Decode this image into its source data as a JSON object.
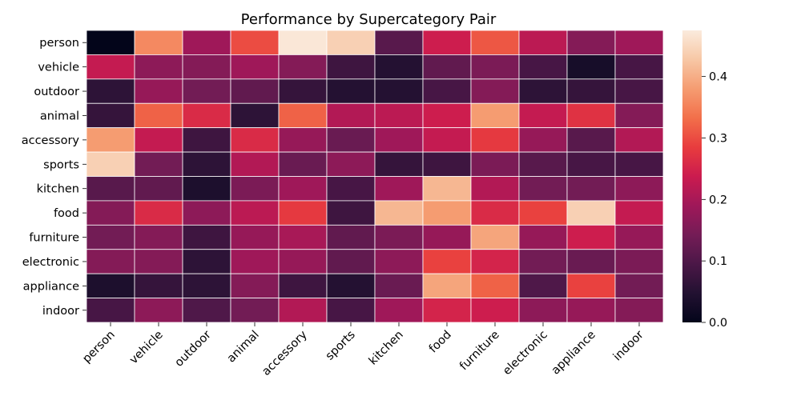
{
  "chart_data": {
    "type": "heatmap",
    "title": "Performance by Supercategory Pair",
    "xlabel": "",
    "ylabel": "",
    "x_categories": [
      "person",
      "vehicle",
      "outdoor",
      "animal",
      "accessory",
      "sports",
      "kitchen",
      "food",
      "furniture",
      "electronic",
      "appliance",
      "indoor"
    ],
    "y_categories": [
      "person",
      "vehicle",
      "outdoor",
      "animal",
      "accessory",
      "sports",
      "kitchen",
      "food",
      "furniture",
      "electronic",
      "appliance",
      "indoor"
    ],
    "values": [
      [
        0.0,
        0.36,
        0.19,
        0.3,
        0.47,
        0.44,
        0.11,
        0.24,
        0.31,
        0.22,
        0.16,
        0.19
      ],
      [
        0.23,
        0.17,
        0.16,
        0.19,
        0.16,
        0.08,
        0.05,
        0.12,
        0.15,
        0.09,
        0.03,
        0.09
      ],
      [
        0.06,
        0.18,
        0.14,
        0.12,
        0.07,
        0.05,
        0.05,
        0.09,
        0.16,
        0.06,
        0.07,
        0.09
      ],
      [
        0.07,
        0.32,
        0.26,
        0.06,
        0.32,
        0.21,
        0.22,
        0.24,
        0.38,
        0.23,
        0.27,
        0.16
      ],
      [
        0.38,
        0.23,
        0.08,
        0.26,
        0.18,
        0.13,
        0.19,
        0.23,
        0.28,
        0.18,
        0.11,
        0.21
      ],
      [
        0.44,
        0.14,
        0.06,
        0.21,
        0.13,
        0.17,
        0.07,
        0.08,
        0.15,
        0.11,
        0.09,
        0.09
      ],
      [
        0.11,
        0.12,
        0.04,
        0.15,
        0.19,
        0.09,
        0.19,
        0.41,
        0.21,
        0.14,
        0.14,
        0.17
      ],
      [
        0.16,
        0.26,
        0.17,
        0.22,
        0.28,
        0.08,
        0.41,
        0.38,
        0.26,
        0.29,
        0.44,
        0.23
      ],
      [
        0.14,
        0.16,
        0.08,
        0.18,
        0.2,
        0.12,
        0.15,
        0.18,
        0.39,
        0.18,
        0.24,
        0.18
      ],
      [
        0.16,
        0.16,
        0.06,
        0.19,
        0.18,
        0.12,
        0.17,
        0.29,
        0.25,
        0.14,
        0.13,
        0.15
      ],
      [
        0.04,
        0.07,
        0.06,
        0.16,
        0.08,
        0.05,
        0.13,
        0.39,
        0.32,
        0.1,
        0.29,
        0.14
      ],
      [
        0.09,
        0.17,
        0.1,
        0.14,
        0.21,
        0.09,
        0.19,
        0.25,
        0.24,
        0.17,
        0.18,
        0.16
      ]
    ],
    "colormap": "rocket",
    "colorbar": {
      "range": [
        0.0,
        0.475
      ],
      "ticks": [
        "0.0",
        "0.1",
        "0.2",
        "0.3",
        "0.4"
      ],
      "tick_values": [
        0.0,
        0.1,
        0.2,
        0.3,
        0.4
      ]
    },
    "grid_lines_color": "#ffffff"
  }
}
